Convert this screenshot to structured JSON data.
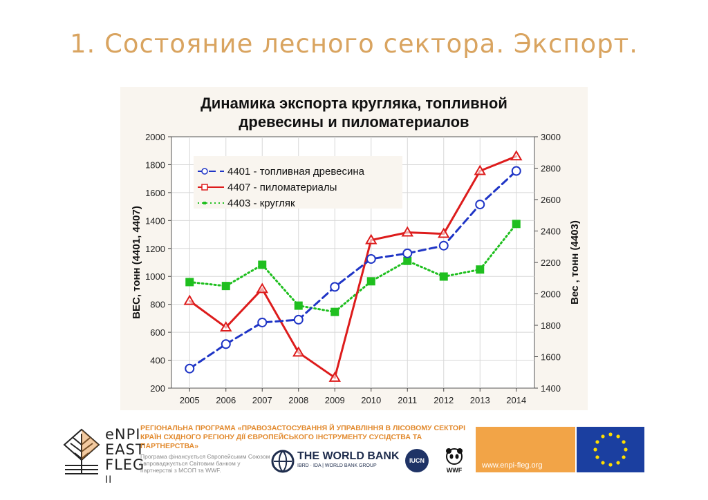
{
  "slide": {
    "title": "1. Состояние лесного сектора. Экспорт."
  },
  "chart_data": {
    "type": "line",
    "title": "Динамика экспорта кругляка, топливной древесины и пиломатериалов",
    "title_lines": [
      "Динамика экспорта кругляка, топливной",
      "древесины и пиломатериалов"
    ],
    "ylabel_left": "ВЕС, тонн (4401, 4407)",
    "ylabel_right": "Вес , тонн (4403)",
    "x": [
      "2005",
      "2006",
      "2007",
      "2008",
      "2009",
      "2010",
      "2011",
      "2012",
      "2013",
      "2014"
    ],
    "ylim_left": [
      200,
      2000
    ],
    "yticks_left": [
      200,
      400,
      600,
      800,
      1000,
      1200,
      1400,
      1600,
      1800,
      2000
    ],
    "ylim_right": [
      1400,
      3000
    ],
    "yticks_right": [
      1400,
      1600,
      1800,
      2000,
      2200,
      2400,
      2600,
      2800,
      3000
    ],
    "grid": true,
    "legend_position": "top-left",
    "series": [
      {
        "name": "4401 - топливная древесина",
        "axis": "left",
        "color": "#1f35c6",
        "style": "dashed",
        "marker": "circle",
        "values": [
          340,
          515,
          670,
          690,
          925,
          1125,
          1165,
          1220,
          1515,
          1755
        ]
      },
      {
        "name": "4407 - пиломатериалы",
        "axis": "left",
        "color": "#dd1c1c",
        "style": "solid",
        "marker": "triangle",
        "values": [
          825,
          635,
          910,
          455,
          275,
          1260,
          1315,
          1305,
          1755,
          1860
        ]
      },
      {
        "name": "4403 - кругляк",
        "axis": "right",
        "color": "#1fbf1f",
        "style": "dotted",
        "marker": "square",
        "values": [
          2075,
          2050,
          2185,
          1925,
          1885,
          2080,
          2210,
          2110,
          2155,
          2445
        ]
      }
    ]
  },
  "footer": {
    "logo_text": [
      "eNPI",
      "EAST",
      "FLEG",
      "II"
    ],
    "program_title": "РЕГІОНАЛЬНА ПРОГРАМА «ПРАВОЗАСТОСУВАННЯ Й УПРАВЛІННЯ В ЛІСОВОМУ СЕКТОРІ КРАЇН СХІДНОГО РЕГІОНУ ДІЇ ЄВРОПЕЙСЬКОГО ІНСТРУМЕНТУ СУСІДСТВА ТА ПАРТНЕРСТВА»",
    "program_subtitle": "Програма фінансується Європейським Союзом і впроваджується Світовим банком у партнерстві з МСОП та WWF.",
    "world_bank": "THE WORLD BANK",
    "world_bank_sub": "IBRD · IDA | WORLD BANK GROUP",
    "iucn": "IUCN",
    "wwf": "WWF",
    "url": "www.enpi-fleg.org",
    "colors": {
      "orange": "#f2a447",
      "eu_blue": "#1b3fa0",
      "eu_star": "#ffdd00"
    }
  }
}
